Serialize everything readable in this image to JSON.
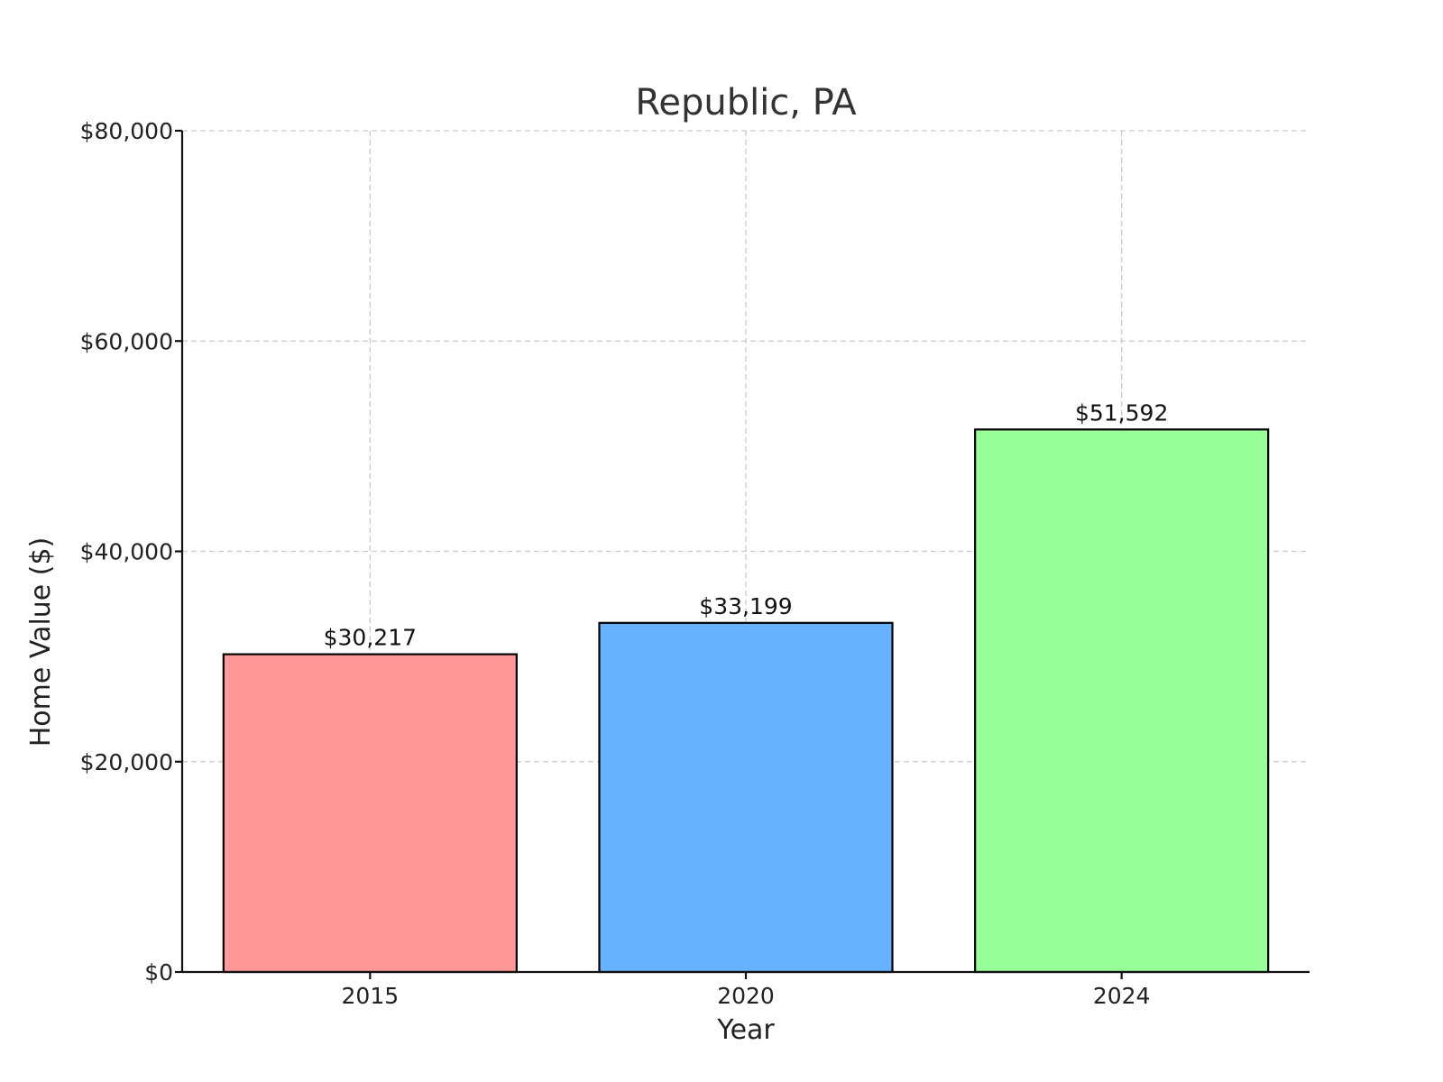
{
  "chart_data": {
    "type": "bar",
    "title": "Republic, PA",
    "xlabel": "Year",
    "ylabel": "Home Value ($)",
    "categories": [
      "2015",
      "2020",
      "2024"
    ],
    "values": [
      30217,
      33199,
      51592
    ],
    "value_labels": [
      "$30,217",
      "$33,199",
      "$51,592"
    ],
    "bar_colors": [
      "#ff9999",
      "#66b2ff",
      "#99ff99"
    ],
    "ylim": [
      0,
      80000
    ],
    "yticks": [
      0,
      20000,
      40000,
      60000,
      80000
    ],
    "ytick_labels": [
      "$0",
      "$20,000",
      "$40,000",
      "$60,000",
      "$80,000"
    ],
    "grid": true
  }
}
